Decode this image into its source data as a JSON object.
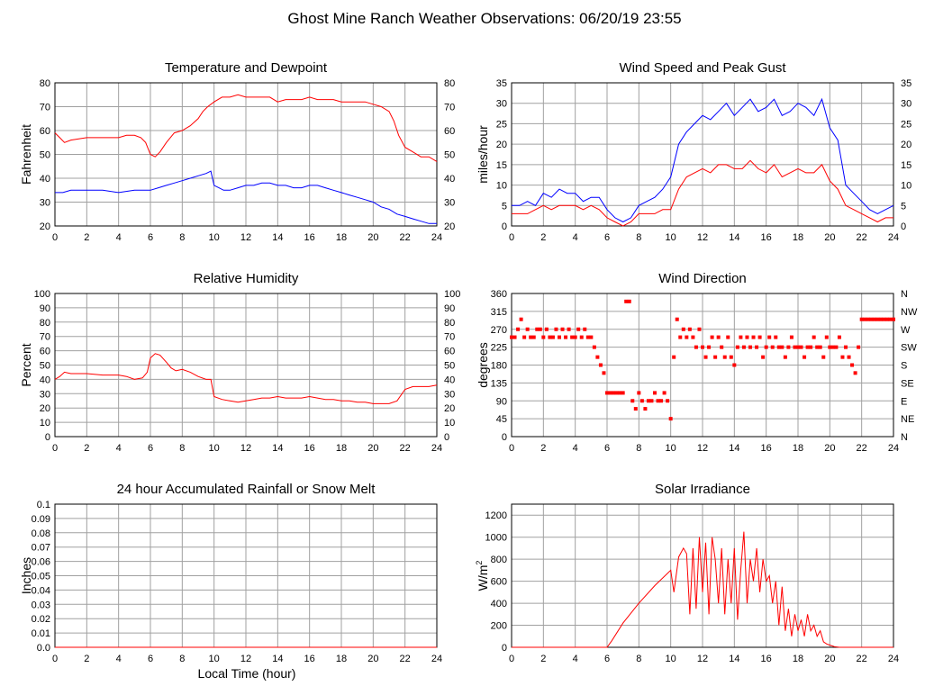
{
  "title": "Ghost Mine Ranch Weather Observations: 06/20/19 23:55",
  "xlabel": "Local Time (hour)",
  "x_ticks": [
    "0",
    "2",
    "4",
    "6",
    "8",
    "10",
    "12",
    "14",
    "16",
    "18",
    "20",
    "22",
    "24"
  ],
  "colors": {
    "red": "#ff0000",
    "blue": "#0000ff",
    "grid": "#a0a0a0"
  },
  "chart_data": [
    {
      "id": "temp",
      "type": "line",
      "title": "Temperature and Dewpoint",
      "ylabel": "Fahrenheit",
      "xlim": [
        0,
        24
      ],
      "ylim": [
        20,
        80
      ],
      "y_ticks": [
        "20",
        "30",
        "40",
        "50",
        "60",
        "70",
        "80"
      ],
      "y_ticks_right": [
        "20",
        "30",
        "40",
        "50",
        "60",
        "70",
        "80"
      ],
      "series": [
        {
          "color": "#ff0000",
          "x": [
            0,
            0.3,
            0.6,
            1,
            2,
            3,
            4,
            4.5,
            5,
            5.4,
            5.7,
            6,
            6.3,
            6.6,
            7,
            7.5,
            8,
            8.5,
            9,
            9.3,
            9.6,
            10,
            10.5,
            11,
            11.5,
            12,
            12.5,
            13,
            13.5,
            14,
            14.5,
            15,
            15.5,
            16,
            16.5,
            17,
            17.5,
            18,
            18.5,
            19,
            19.5,
            20,
            20.5,
            21,
            21.3,
            21.6,
            22,
            22.5,
            23,
            23.5,
            24
          ],
          "y": [
            59,
            57,
            55,
            56,
            57,
            57,
            57,
            58,
            58,
            57,
            55,
            50,
            49,
            51,
            55,
            59,
            60,
            62,
            65,
            68,
            70,
            72,
            74,
            74,
            75,
            74,
            74,
            74,
            74,
            72,
            73,
            73,
            73,
            74,
            73,
            73,
            73,
            72,
            72,
            72,
            72,
            71,
            70,
            68,
            64,
            58,
            53,
            51,
            49,
            49,
            47
          ]
        },
        {
          "color": "#0000ff",
          "x": [
            0,
            0.5,
            1,
            2,
            3,
            4,
            5,
            5.8,
            6,
            6.5,
            7,
            7.5,
            8,
            8.5,
            9,
            9.5,
            9.8,
            10,
            10.3,
            10.6,
            11,
            11.5,
            12,
            12.5,
            13,
            13.5,
            14,
            14.5,
            15,
            15.5,
            16,
            16.5,
            17,
            17.5,
            18,
            18.5,
            19,
            19.5,
            20,
            20.5,
            21,
            21.5,
            22,
            22.5,
            23,
            23.5,
            24
          ],
          "y": [
            34,
            34,
            35,
            35,
            35,
            34,
            35,
            35,
            35,
            36,
            37,
            38,
            39,
            40,
            41,
            42,
            43,
            37,
            36,
            35,
            35,
            36,
            37,
            37,
            38,
            38,
            37,
            37,
            36,
            36,
            37,
            37,
            36,
            35,
            34,
            33,
            32,
            31,
            30,
            28,
            27,
            25,
            24,
            23,
            22,
            21,
            21
          ]
        }
      ]
    },
    {
      "id": "wind",
      "type": "line",
      "title": "Wind Speed and Peak Gust",
      "ylabel": "miles/hour",
      "xlim": [
        0,
        24
      ],
      "ylim": [
        0,
        35
      ],
      "y_ticks": [
        "0",
        "5",
        "10",
        "15",
        "20",
        "25",
        "30",
        "35"
      ],
      "y_ticks_right": [
        "0",
        "5",
        "10",
        "15",
        "20",
        "25",
        "30",
        "35"
      ],
      "series": [
        {
          "color": "#0000ff",
          "x": [
            0,
            0.5,
            1,
            1.5,
            2,
            2.5,
            3,
            3.5,
            4,
            4.5,
            5,
            5.5,
            6,
            6.5,
            7,
            7.5,
            8,
            8.5,
            9,
            9.5,
            10,
            10.5,
            11,
            11.5,
            12,
            12.5,
            13,
            13.5,
            14,
            14.5,
            15,
            15.5,
            16,
            16.5,
            17,
            17.5,
            18,
            18.5,
            19,
            19.5,
            20,
            20.5,
            21,
            21.5,
            22,
            22.5,
            23,
            23.5,
            24
          ],
          "y": [
            5,
            5,
            6,
            5,
            8,
            7,
            9,
            8,
            8,
            6,
            7,
            7,
            4,
            2,
            1,
            2,
            5,
            6,
            7,
            9,
            12,
            20,
            23,
            25,
            27,
            26,
            28,
            30,
            27,
            29,
            31,
            28,
            29,
            31,
            27,
            28,
            30,
            29,
            27,
            31,
            24,
            21,
            10,
            8,
            6,
            4,
            3,
            4,
            5
          ]
        },
        {
          "color": "#ff0000",
          "x": [
            0,
            0.5,
            1,
            1.5,
            2,
            2.5,
            3,
            3.5,
            4,
            4.5,
            5,
            5.5,
            6,
            6.5,
            7,
            7.5,
            8,
            8.5,
            9,
            9.5,
            10,
            10.5,
            11,
            11.5,
            12,
            12.5,
            13,
            13.5,
            14,
            14.5,
            15,
            15.5,
            16,
            16.5,
            17,
            17.5,
            18,
            18.5,
            19,
            19.5,
            20,
            20.5,
            21,
            21.5,
            22,
            22.5,
            23,
            23.5,
            24
          ],
          "y": [
            3,
            3,
            3,
            4,
            5,
            4,
            5,
            5,
            5,
            4,
            5,
            4,
            2,
            1,
            0,
            1,
            3,
            3,
            3,
            4,
            4,
            9,
            12,
            13,
            14,
            13,
            15,
            15,
            14,
            14,
            16,
            14,
            13,
            15,
            12,
            13,
            14,
            13,
            13,
            15,
            11,
            9,
            5,
            4,
            3,
            2,
            1,
            2,
            2
          ]
        }
      ]
    },
    {
      "id": "rh",
      "type": "line",
      "title": "Relative Humidity",
      "ylabel": "Percent",
      "xlim": [
        0,
        24
      ],
      "ylim": [
        0,
        100
      ],
      "y_ticks": [
        "0",
        "10",
        "20",
        "30",
        "40",
        "50",
        "60",
        "70",
        "80",
        "90",
        "100"
      ],
      "y_ticks_right": [
        "0",
        "10",
        "20",
        "30",
        "40",
        "50",
        "60",
        "70",
        "80",
        "90",
        "100"
      ],
      "series": [
        {
          "color": "#ff0000",
          "x": [
            0,
            0.3,
            0.6,
            1,
            2,
            3,
            4,
            4.5,
            5,
            5.5,
            5.8,
            6,
            6.3,
            6.6,
            7,
            7.3,
            7.6,
            8,
            8.5,
            9,
            9.5,
            9.8,
            10,
            10.5,
            11,
            11.5,
            12,
            12.5,
            13,
            13.5,
            14,
            14.5,
            15,
            15.5,
            16,
            16.5,
            17,
            17.5,
            18,
            18.5,
            19,
            19.5,
            20,
            20.5,
            21,
            21.5,
            22,
            22.5,
            23,
            23.5,
            24
          ],
          "y": [
            40,
            42,
            45,
            44,
            44,
            43,
            43,
            42,
            40,
            41,
            45,
            55,
            58,
            57,
            52,
            48,
            46,
            47,
            45,
            42,
            40,
            40,
            28,
            26,
            25,
            24,
            25,
            26,
            27,
            27,
            28,
            27,
            27,
            27,
            28,
            27,
            26,
            26,
            25,
            25,
            24,
            24,
            23,
            23,
            23,
            25,
            33,
            35,
            35,
            35,
            36
          ]
        }
      ]
    },
    {
      "id": "wdir",
      "type": "scatter",
      "title": "Wind Direction",
      "ylabel": "degrees",
      "xlim": [
        0,
        24
      ],
      "ylim": [
        0,
        360
      ],
      "y_ticks": [
        "0",
        "45",
        "90",
        "135",
        "180",
        "225",
        "270",
        "315",
        "360"
      ],
      "y_ticks_right": [
        "N",
        "NE",
        "E",
        "SE",
        "S",
        "SW",
        "W",
        "NW",
        "N"
      ],
      "series": [
        {
          "color": "#ff0000",
          "x": [
            0,
            0.2,
            0.4,
            0.6,
            0.8,
            1,
            1.2,
            1.4,
            1.6,
            1.8,
            2,
            2.2,
            2.4,
            2.6,
            2.8,
            3,
            3.2,
            3.4,
            3.6,
            3.8,
            4,
            4.2,
            4.4,
            4.6,
            4.8,
            5,
            5.2,
            5.4,
            5.6,
            5.8,
            6,
            6.2,
            6.4,
            6.6,
            6.8,
            7,
            7.2,
            7.4,
            7.6,
            7.8,
            8,
            8.2,
            8.4,
            8.6,
            8.8,
            9,
            9.2,
            9.4,
            9.6,
            9.8,
            10,
            10.2,
            10.4,
            10.6,
            10.8,
            11,
            11.2,
            11.4,
            11.6,
            11.8,
            12,
            12.2,
            12.4,
            12.6,
            12.8,
            13,
            13.2,
            13.4,
            13.6,
            13.8,
            14,
            14.2,
            14.4,
            14.6,
            14.8,
            15,
            15.2,
            15.4,
            15.6,
            15.8,
            16,
            16.2,
            16.4,
            16.6,
            16.8,
            17,
            17.2,
            17.4,
            17.6,
            17.8,
            18,
            18.2,
            18.4,
            18.6,
            18.8,
            19,
            19.2,
            19.4,
            19.6,
            19.8,
            20,
            20.2,
            20.4,
            20.6,
            20.8,
            21,
            21.2,
            21.4,
            21.6,
            21.8,
            22,
            22.2,
            22.4,
            22.6,
            22.8,
            23,
            23.2,
            23.4,
            23.6,
            23.8,
            24
          ],
          "y": [
            250,
            250,
            270,
            295,
            250,
            270,
            250,
            250,
            270,
            270,
            250,
            270,
            250,
            250,
            270,
            250,
            270,
            250,
            270,
            250,
            250,
            270,
            250,
            270,
            250,
            250,
            225,
            200,
            180,
            160,
            110,
            110,
            110,
            110,
            110,
            110,
            340,
            340,
            90,
            70,
            110,
            90,
            70,
            90,
            90,
            110,
            90,
            90,
            110,
            90,
            45,
            200,
            295,
            250,
            270,
            250,
            270,
            250,
            225,
            270,
            225,
            200,
            225,
            250,
            200,
            250,
            225,
            200,
            250,
            200,
            180,
            225,
            250,
            225,
            250,
            225,
            250,
            225,
            250,
            200,
            225,
            250,
            225,
            250,
            225,
            225,
            200,
            225,
            250,
            225,
            225,
            225,
            200,
            225,
            225,
            250,
            225,
            225,
            200,
            250,
            225,
            225,
            225,
            250,
            200,
            225,
            200,
            180,
            160,
            225,
            295,
            295,
            295,
            295,
            295,
            295,
            295,
            295,
            295,
            295,
            295
          ]
        }
      ]
    },
    {
      "id": "rain",
      "type": "line",
      "title": "24 hour Accumulated Rainfall or Snow Melt",
      "ylabel": "Inches",
      "xlim": [
        0,
        24
      ],
      "ylim": [
        0,
        0.1
      ],
      "y_ticks": [
        "0.0",
        "0.01",
        "0.02",
        "0.03",
        "0.04",
        "0.05",
        "0.06",
        "0.07",
        "0.08",
        "0.09",
        "0.1"
      ],
      "y_ticks_right": [],
      "series": [
        {
          "color": "#ff0000",
          "x": [
            0,
            24
          ],
          "y": [
            0,
            0
          ]
        }
      ]
    },
    {
      "id": "solar",
      "type": "line",
      "title": "Solar Irradiance",
      "ylabel": "W/m",
      "ylabel_sup": "2",
      "xlim": [
        0,
        24
      ],
      "ylim": [
        0,
        1300
      ],
      "y_ticks": [
        "0",
        "200",
        "400",
        "600",
        "800",
        "1000",
        "1200"
      ],
      "y_tick_values": [
        0,
        200,
        400,
        600,
        800,
        1000,
        1200
      ],
      "y_ticks_right": [],
      "series": [
        {
          "color": "#ff0000",
          "x": [
            0,
            6,
            6.3,
            7,
            8,
            9,
            10,
            10.2,
            10.5,
            10.8,
            11,
            11.2,
            11.4,
            11.6,
            11.8,
            12,
            12.2,
            12.4,
            12.6,
            12.8,
            13,
            13.2,
            13.4,
            13.6,
            13.8,
            14,
            14.2,
            14.4,
            14.6,
            14.8,
            15,
            15.2,
            15.4,
            15.6,
            15.8,
            16,
            16.2,
            16.4,
            16.6,
            16.8,
            17,
            17.2,
            17.4,
            17.6,
            17.8,
            18,
            18.2,
            18.4,
            18.6,
            18.8,
            19,
            19.2,
            19.4,
            19.6,
            19.8,
            20,
            20.3,
            20.6,
            21,
            24
          ],
          "y": [
            0,
            0,
            60,
            220,
            400,
            560,
            700,
            500,
            820,
            900,
            850,
            300,
            900,
            350,
            1000,
            500,
            950,
            300,
            1000,
            800,
            400,
            900,
            300,
            800,
            400,
            900,
            250,
            700,
            1050,
            400,
            800,
            600,
            900,
            500,
            800,
            600,
            650,
            400,
            600,
            200,
            550,
            150,
            350,
            100,
            300,
            150,
            250,
            100,
            300,
            150,
            200,
            100,
            150,
            50,
            30,
            20,
            5,
            0,
            0,
            0
          ]
        }
      ]
    }
  ]
}
